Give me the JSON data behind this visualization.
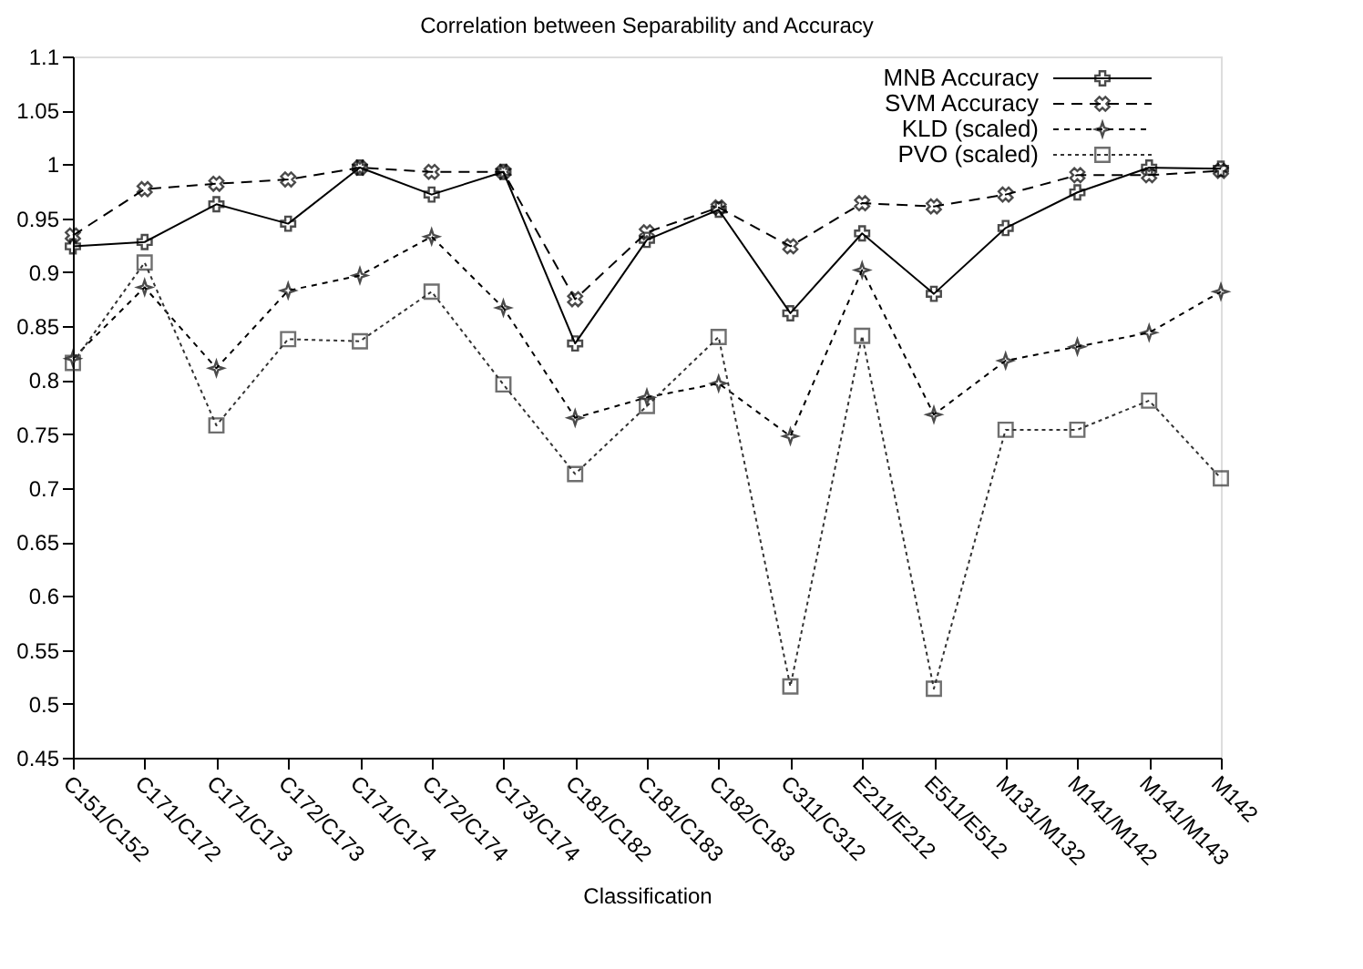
{
  "chart_data": {
    "type": "line",
    "title": "Correlation between Separability and Accuracy",
    "xlabel": "Classification",
    "categories": [
      "C151/C152",
      "C171/C172",
      "C171/C173",
      "C172/C173",
      "C171/C174",
      "C172/C174",
      "C173/C174",
      "C181/C182",
      "C181/C183",
      "C182/C183",
      "C311/C312",
      "E211/E212",
      "E511/E512",
      "M131/M132",
      "M141/M142",
      "M141/M143",
      "M142"
    ],
    "series": [
      {
        "name": "MNB Accuracy",
        "color": "#000000",
        "marker": "cross",
        "line_style": "solid",
        "values": [
          0.924,
          0.928,
          0.963,
          0.945,
          0.997,
          0.972,
          0.993,
          0.834,
          0.93,
          0.958,
          0.862,
          0.936,
          0.88,
          0.941,
          0.974,
          0.997,
          0.996
        ]
      },
      {
        "name": "SVM Accuracy",
        "color": "#000000",
        "marker": "x",
        "line_style": "dashed",
        "values": [
          0.934,
          0.977,
          0.982,
          0.986,
          0.997,
          0.993,
          0.993,
          0.875,
          0.937,
          0.96,
          0.924,
          0.964,
          0.961,
          0.972,
          0.99,
          0.99,
          0.994
        ]
      },
      {
        "name": "KLD (scaled)",
        "color": "#000000",
        "marker": "star",
        "line_style": "dashed",
        "values": [
          0.82,
          0.886,
          0.811,
          0.883,
          0.897,
          0.933,
          0.867,
          0.765,
          0.784,
          0.797,
          0.748,
          0.902,
          0.768,
          0.818,
          0.831,
          0.844,
          0.882
        ]
      },
      {
        "name": "PVO (scaled)",
        "color": "#333333",
        "marker": "square",
        "line_style": "dotted",
        "values": [
          0.816,
          0.909,
          0.758,
          0.838,
          0.836,
          0.882,
          0.796,
          0.713,
          0.776,
          0.84,
          0.516,
          0.841,
          0.514,
          0.754,
          0.754,
          0.781,
          0.709
        ]
      }
    ],
    "ylim": [
      0.45,
      1.1
    ],
    "yticks": [
      0.45,
      0.5,
      0.55,
      0.6,
      0.65,
      0.7,
      0.75,
      0.8,
      0.85,
      0.9,
      0.95,
      1,
      1.05,
      1.1
    ],
    "grid": false,
    "legend": "top right"
  }
}
